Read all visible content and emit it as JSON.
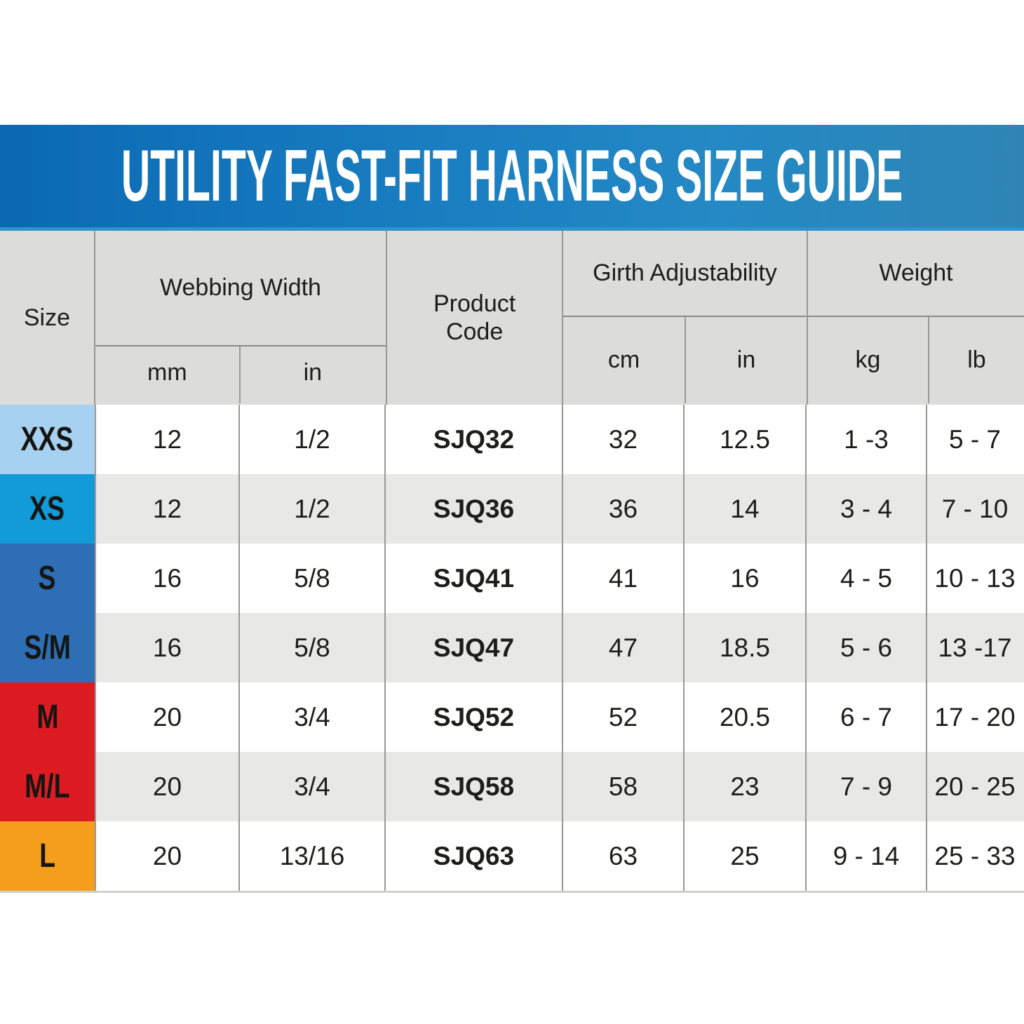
{
  "banner": {
    "title": "UTILITY FAST-FIT HARNESS SIZE GUIDE",
    "background_left": "#0b69b4",
    "background_right": "#2e85b5",
    "accent_strip": "#2e93cd",
    "text_color": "#ffffff"
  },
  "table": {
    "header": {
      "size": "Size",
      "webbing_group": "Webbing Width",
      "webbing_mm": "mm",
      "webbing_in": "in",
      "product_line1": "Product",
      "product_line2": "Code",
      "girth_group": "Girth Adjustability",
      "girth_cm": "cm",
      "girth_in": "in",
      "weight_group": "Weight",
      "weight_kg": "kg",
      "weight_lb": "lb"
    },
    "header_background": "#dcdcda",
    "stripe_color": "#e8e8e7",
    "size_colors": {
      "XXS": "#a6d1f0",
      "XS": "#119bd8",
      "S": "#2e6eb5",
      "S/M": "#2e6eb5",
      "M": "#dc1c22",
      "M/L": "#dc1c22",
      "L": "#f59e1b"
    }
  },
  "chart_data": {
    "type": "table",
    "title": "UTILITY FAST-FIT HARNESS SIZE GUIDE",
    "columns": [
      "Size",
      "Webbing Width (mm)",
      "Webbing Width (in)",
      "Product Code",
      "Girth Adjustability (cm)",
      "Girth Adjustability (in)",
      "Weight (kg)",
      "Weight (lb)"
    ],
    "rows": [
      [
        "XXS",
        "12",
        "1/2",
        "SJQ32",
        "32",
        "12.5",
        "1 -3",
        "5 - 7"
      ],
      [
        "XS",
        "12",
        "1/2",
        "SJQ36",
        "36",
        "14",
        "3 - 4",
        "7 - 10"
      ],
      [
        "S",
        "16",
        "5/8",
        "SJQ41",
        "41",
        "16",
        "4 - 5",
        "10 - 13"
      ],
      [
        "S/M",
        "16",
        "5/8",
        "SJQ47",
        "47",
        "18.5",
        "5 - 6",
        "13 -17"
      ],
      [
        "M",
        "20",
        "3/4",
        "SJQ52",
        "52",
        "20.5",
        "6 - 7",
        "17 - 20"
      ],
      [
        "M/L",
        "20",
        "3/4",
        "SJQ58",
        "58",
        "23",
        "7 - 9",
        "20 - 25"
      ],
      [
        "L",
        "20",
        "13/16",
        "SJQ63",
        "63",
        "25",
        "9 - 14",
        "25 - 33"
      ]
    ]
  }
}
